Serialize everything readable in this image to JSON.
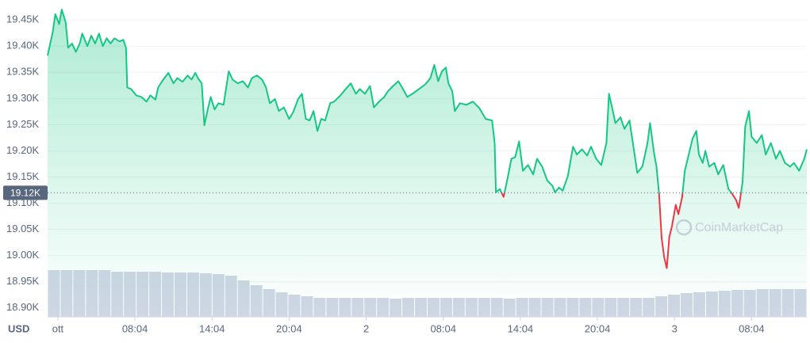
{
  "chart_data": {
    "type": "line",
    "unit_label": "USD",
    "watermark": "CoinMarketCap",
    "color": "#16c784",
    "color_below": "#ea3943",
    "fill_color": "#16c784",
    "grid": true,
    "reference": {
      "value": 19120,
      "label": "19.12K"
    },
    "xlim": [
      1.2,
      60.3
    ],
    "ylim": [
      18883,
      19476
    ],
    "xticks": [
      {
        "value": 2,
        "label": "ott"
      },
      {
        "value": 8,
        "label": "08:04"
      },
      {
        "value": 14,
        "label": "14:04"
      },
      {
        "value": 20,
        "label": "20:04"
      },
      {
        "value": 26,
        "label": "2"
      },
      {
        "value": 32,
        "label": "08:04"
      },
      {
        "value": 38,
        "label": "14:04"
      },
      {
        "value": 44,
        "label": "20:04"
      },
      {
        "value": 50,
        "label": "3"
      },
      {
        "value": 56,
        "label": "08:04"
      }
    ],
    "yticks": [
      {
        "value": 18900,
        "label": "18.90K"
      },
      {
        "value": 18950,
        "label": "18.95K"
      },
      {
        "value": 19000,
        "label": "19.00K"
      },
      {
        "value": 19050,
        "label": "19.05K"
      },
      {
        "value": 19100,
        "label": "19.10K"
      },
      {
        "value": 19150,
        "label": "19.15K"
      },
      {
        "value": 19200,
        "label": "19.20K"
      },
      {
        "value": 19250,
        "label": "19.25K"
      },
      {
        "value": 19300,
        "label": "19.30K"
      },
      {
        "value": 19350,
        "label": "19.35K"
      },
      {
        "value": 19400,
        "label": "19.40K"
      },
      {
        "value": 19450,
        "label": "19.45K"
      }
    ],
    "x": [
      1.2,
      1.6,
      1.8,
      2.1,
      2.3,
      2.6,
      2.8,
      3.1,
      3.4,
      3.7,
      3.9,
      4.3,
      4.6,
      4.9,
      5.2,
      5.5,
      5.8,
      6.1,
      6.4,
      6.8,
      7.1,
      7.3,
      7.4,
      7.7,
      8.1,
      8.5,
      8.9,
      9.2,
      9.6,
      9.8,
      10.2,
      10.6,
      11.0,
      11.3,
      11.7,
      12.1,
      12.4,
      12.7,
      12.9,
      13.2,
      13.4,
      13.7,
      13.9,
      14.2,
      14.5,
      14.9,
      15.3,
      15.6,
      16.0,
      16.4,
      16.8,
      17.1,
      17.5,
      17.9,
      18.2,
      18.5,
      18.9,
      19.2,
      19.6,
      20.0,
      20.3,
      20.7,
      21.0,
      21.3,
      21.6,
      21.9,
      22.2,
      22.5,
      22.8,
      23.2,
      23.5,
      24.0,
      24.4,
      24.8,
      25.2,
      25.5,
      25.9,
      26.3,
      26.6,
      27.0,
      27.4,
      27.7,
      28.1,
      28.5,
      28.8,
      29.2,
      29.6,
      30.1,
      30.6,
      31.0,
      31.3,
      31.6,
      31.9,
      32.2,
      32.4,
      32.7,
      32.9,
      33.3,
      33.8,
      34.3,
      34.8,
      35.3,
      35.8,
      36.0,
      36.1,
      36.4,
      36.7,
      37.0,
      37.3,
      37.6,
      37.9,
      38.2,
      38.6,
      39.0,
      39.3,
      39.7,
      40.1,
      40.5,
      40.7,
      41.0,
      41.3,
      41.7,
      42.1,
      42.4,
      42.8,
      43.2,
      43.5,
      43.9,
      44.3,
      44.7,
      44.9,
      45.2,
      45.4,
      45.8,
      46.1,
      46.5,
      46.9,
      47.1,
      47.5,
      47.9,
      48.1,
      48.4,
      48.6,
      48.8,
      49.0,
      49.2,
      49.4,
      49.6,
      49.8,
      50.1,
      50.3,
      50.6,
      50.8,
      51.1,
      51.4,
      51.7,
      51.9,
      52.2,
      52.4,
      52.7,
      53.1,
      53.4,
      53.8,
      54.2,
      54.4,
      54.8,
      55.0,
      55.3,
      55.5,
      55.8,
      56.0,
      56.4,
      56.8,
      57.1,
      57.5,
      57.9,
      58.2,
      58.6,
      59.0,
      59.3,
      59.7,
      60.1,
      60.3
    ],
    "values": [
      19382,
      19427,
      19461,
      19442,
      19470,
      19446,
      19397,
      19405,
      19389,
      19405,
      19424,
      19400,
      19420,
      19405,
      19424,
      19400,
      19415,
      19405,
      19415,
      19409,
      19412,
      19397,
      19321,
      19318,
      19306,
      19303,
      19294,
      19306,
      19298,
      19321,
      19336,
      19349,
      19329,
      19339,
      19332,
      19344,
      19336,
      19349,
      19339,
      19329,
      19249,
      19283,
      19303,
      19279,
      19291,
      19288,
      19352,
      19336,
      19329,
      19333,
      19321,
      19339,
      19344,
      19336,
      19321,
      19291,
      19299,
      19276,
      19283,
      19261,
      19273,
      19299,
      19309,
      19261,
      19258,
      19276,
      19238,
      19261,
      19258,
      19291,
      19294,
      19306,
      19318,
      19329,
      19309,
      19318,
      19309,
      19324,
      19283,
      19294,
      19303,
      19314,
      19324,
      19333,
      19321,
      19303,
      19309,
      19318,
      19327,
      19339,
      19364,
      19333,
      19352,
      19359,
      19329,
      19314,
      19276,
      19291,
      19288,
      19294,
      19282,
      19261,
      19258,
      19215,
      19121,
      19127,
      19112,
      19147,
      19185,
      19188,
      19218,
      19162,
      19173,
      19155,
      19185,
      19170,
      19143,
      19133,
      19121,
      19130,
      19124,
      19152,
      19208,
      19193,
      19203,
      19191,
      19208,
      19185,
      19173,
      19215,
      19309,
      19276,
      19253,
      19264,
      19242,
      19258,
      19192,
      19158,
      19170,
      19215,
      19253,
      19197,
      19170,
      19117,
      19033,
      18996,
      18976,
      19036,
      19056,
      19097,
      19079,
      19112,
      19162,
      19192,
      19223,
      19238,
      19193,
      19177,
      19200,
      19170,
      19177,
      19155,
      19173,
      19127,
      19121,
      19106,
      19091,
      19140,
      19246,
      19276,
      19227,
      19215,
      19230,
      19193,
      19215,
      19185,
      19200,
      19177,
      19170,
      19177,
      19162,
      19185,
      19203
    ],
    "volume": {
      "color": "#cfd6e4",
      "lim": [
        0,
        100
      ],
      "values": [
        59,
        59,
        59,
        59,
        59,
        57,
        57,
        57,
        57,
        56,
        56,
        56,
        55,
        54,
        52,
        46,
        40,
        35,
        31,
        28,
        26,
        24,
        24,
        24,
        24,
        24,
        24,
        23,
        24,
        24,
        24,
        24,
        24,
        24,
        24,
        24,
        23,
        24,
        24,
        24,
        24,
        24,
        24,
        24,
        24,
        24,
        24,
        24,
        26,
        28,
        30,
        31,
        32,
        33,
        34,
        34,
        35,
        35,
        35,
        35
      ]
    }
  }
}
